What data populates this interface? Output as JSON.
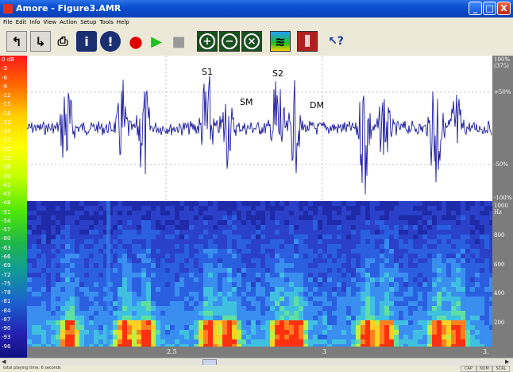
{
  "window": {
    "title": "Amore - Figure3.AMR",
    "controls": {
      "minimize": "_",
      "maximize": "□",
      "close": "X"
    }
  },
  "menu": [
    "File",
    "Edit",
    "Info",
    "View",
    "Action",
    "Setup",
    "Tools",
    "Help"
  ],
  "toolbar": {
    "buttons": [
      {
        "name": "open-file-icon",
        "glyph": "↰"
      },
      {
        "name": "export-icon",
        "glyph": "↳"
      },
      {
        "name": "print-icon",
        "glyph": "⎙"
      },
      {
        "name": "info-icon",
        "glyph": "i"
      },
      {
        "name": "alert-icon",
        "glyph": "!"
      },
      {
        "name": "record-icon",
        "glyph": "●"
      },
      {
        "name": "play-icon",
        "glyph": "▶"
      },
      {
        "name": "stop-icon",
        "glyph": "■"
      },
      {
        "name": "zoom-in-icon",
        "glyph": "+"
      },
      {
        "name": "zoom-out-icon",
        "glyph": "−"
      },
      {
        "name": "zoom-reset-icon",
        "glyph": "×"
      },
      {
        "name": "spectrogram-view-icon",
        "glyph": "≋"
      },
      {
        "name": "equalizer-icon",
        "glyph": "⫼"
      },
      {
        "name": "help-pointer-icon",
        "glyph": "↖?"
      }
    ]
  },
  "colors": {
    "waveform": "#000000",
    "waveform_highlight": "#1a1aa0",
    "grid": "#888888",
    "spectrogram_base": "#2a3fbf",
    "axis_bg": "#7c7c7c"
  },
  "db_scale": [
    "0 dB",
    "-3",
    "-6",
    "-9",
    "-12",
    "-15",
    "-18",
    "-21",
    "-24",
    "-27",
    "-30",
    "-33",
    "-36",
    "-39",
    "-42",
    "-45",
    "-48",
    "-51",
    "-54",
    "-57",
    "-60",
    "-63",
    "-66",
    "-69",
    "-72",
    "-75",
    "-78",
    "-81",
    "-84",
    "-87",
    "-90",
    "-93",
    "-96"
  ],
  "amplitude_axis": {
    "top": "100%",
    "top_sub": "(375)",
    "upper": "+50%",
    "lower": "-50%",
    "bottom": "-100%"
  },
  "frequency_axis": {
    "top": "1000",
    "unit": "Hz",
    "ticks": [
      "800",
      "600",
      "400",
      "200"
    ]
  },
  "time_axis": {
    "ticks": [
      "2.5",
      "3",
      "3."
    ]
  },
  "annotations": [
    "S1",
    "S2",
    "SM",
    "DM"
  ],
  "status": {
    "message": "total playing time: 6 seconds",
    "indicators": [
      "CAP",
      "NUM",
      "SCRL"
    ]
  }
}
